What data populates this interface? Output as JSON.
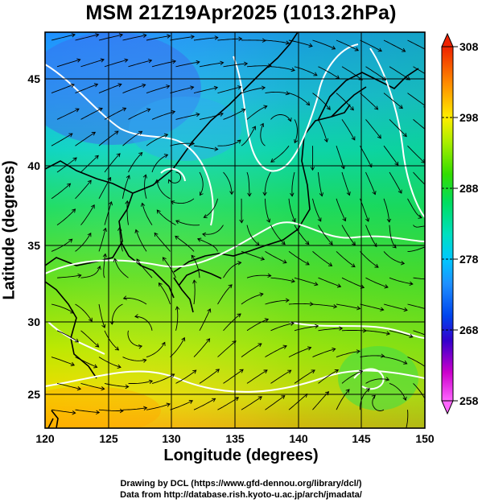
{
  "title": "MSM 21Z19Apr2025 (1013.2hPa)",
  "axes": {
    "xlabel": "Longitude (degrees)",
    "ylabel": "Latitude  (degrees)",
    "x_range": [
      120,
      150
    ],
    "y_range": [
      22.5,
      47.6
    ],
    "x_ticks": [
      "120",
      "125",
      "130",
      "135",
      "140",
      "145",
      "150"
    ],
    "y_ticks": [
      "25",
      "30",
      "35",
      "40",
      "45"
    ],
    "grid": true
  },
  "colorbar": {
    "range": [
      258,
      308
    ],
    "ticks": [
      "258",
      "268",
      "278",
      "288",
      "298",
      "308"
    ],
    "colors": [
      "#ff66ff",
      "#cc00cc",
      "#3300cc",
      "#0044ee",
      "#1e90ff",
      "#00c8ff",
      "#00e0c0",
      "#00dd60",
      "#33dd00",
      "#aaee00",
      "#ffee00",
      "#ff8800",
      "#ee2200"
    ]
  },
  "credits": {
    "line1": "Drawing by DCL (https://www.gfd-dennou.org/library/dcl/)",
    "line2": "Data from http://database.rish.kyoto-u.ac.jp/arch/jmadata/"
  }
}
